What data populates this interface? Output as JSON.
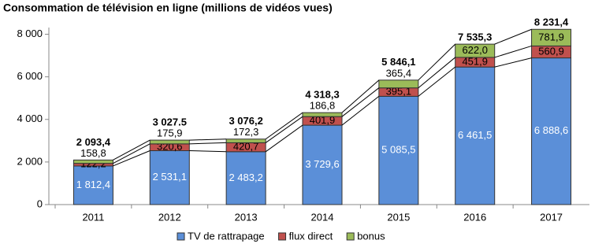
{
  "chart_data": {
    "type": "stacked-bar",
    "title": "Consommation de télévision en ligne (millions de vidéos vues)",
    "categories": [
      "2011",
      "2012",
      "2013",
      "2014",
      "2015",
      "2016",
      "2017"
    ],
    "series": [
      {
        "name": "TV de rattrapage",
        "color": "#5b8fd8",
        "values": [
          1812.4,
          2531.1,
          2483.2,
          3729.6,
          5085.5,
          6461.5,
          6888.6
        ],
        "value_labels": [
          "1 812,4",
          "2 531,1",
          "2 483,2",
          "3 729,6",
          "5 085,5",
          "6 461,5",
          "6 888,6"
        ]
      },
      {
        "name": "flux direct",
        "color": "#c0504d",
        "values": [
          122.2,
          320.6,
          420.7,
          401.9,
          395.1,
          451.9,
          560.9
        ],
        "value_labels": [
          "122,2",
          "320,6",
          "420,7",
          "401,9",
          "395,1",
          "451,9",
          "560,9"
        ]
      },
      {
        "name": "bonus",
        "color": "#9bbb59",
        "values": [
          158.8,
          175.9,
          172.3,
          186.8,
          365.4,
          622.0,
          781.9
        ],
        "value_labels": [
          "158,8",
          "175,9",
          "172,3",
          "186,8",
          "365,4",
          "622,0",
          "781,9"
        ]
      }
    ],
    "totals": [
      2093.4,
      3027.5,
      3076.2,
      4318.3,
      5846.1,
      7535.3,
      8231.4
    ],
    "total_labels": [
      "2 093,4",
      "3 027.5",
      "3 076,2",
      "4 318,3",
      "5 846,1",
      "7 535,3",
      "8 231,4"
    ],
    "ylim": [
      0,
      8500
    ],
    "yticks": [
      0,
      {
        "value": 2000,
        "label": "2 000"
      },
      {
        "value": 4000,
        "label": "4 000"
      },
      {
        "value": 6000,
        "label": "6 000"
      },
      {
        "value": 8000,
        "label": "8 000"
      }
    ],
    "grid": false
  }
}
